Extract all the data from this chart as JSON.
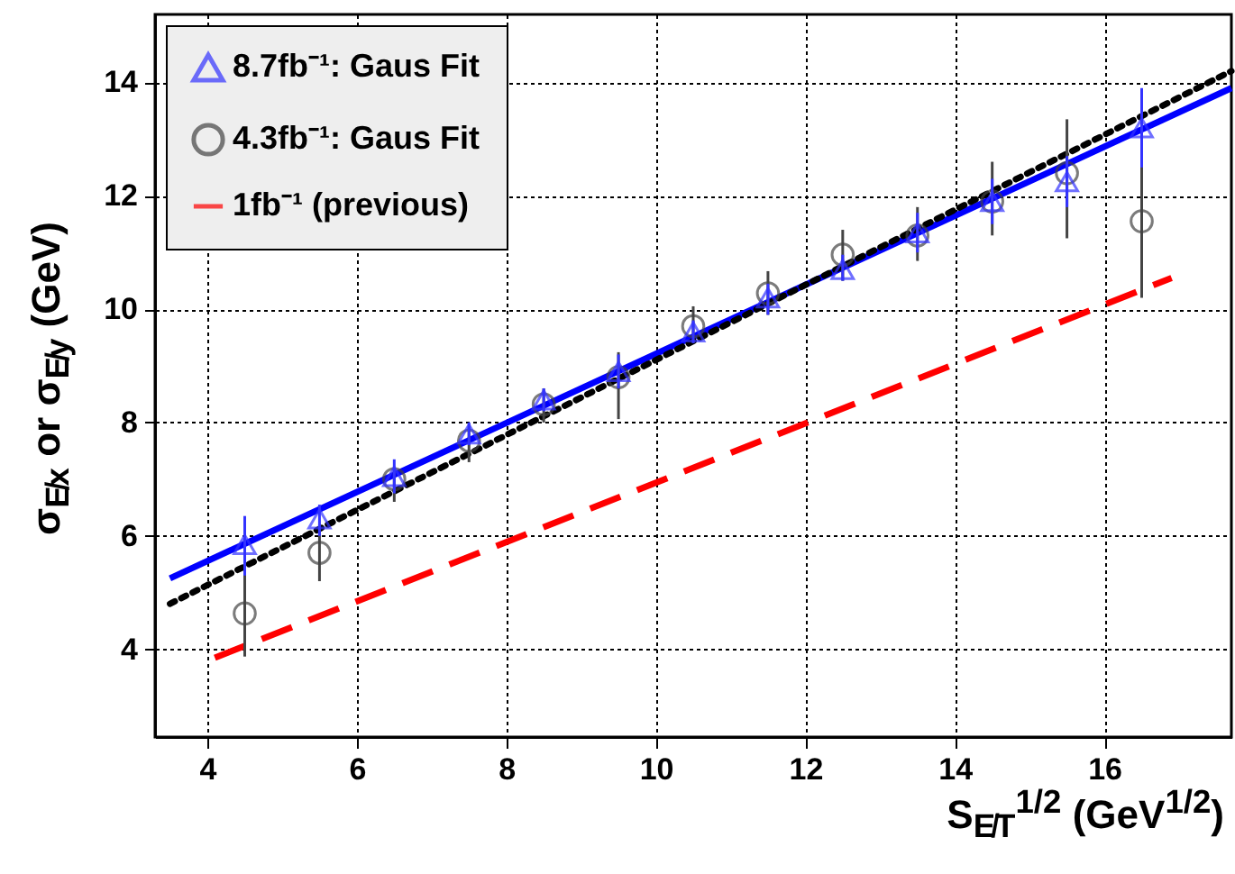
{
  "chart_data": {
    "type": "scatter",
    "xlabel": "S$_{E̸T}$$^{1/2}$ (GeV$^{1/2}$)",
    "ylabel": "σ$_{E̸x}$ or σ$_{E̸y}$ (GeV)",
    "xlim": [
      3.3,
      17.7
    ],
    "ylim": [
      2.45,
      15.2
    ],
    "xticks": [
      4,
      6,
      8,
      10,
      12,
      14,
      16
    ],
    "yticks": [
      4,
      6,
      8,
      10,
      12,
      14
    ],
    "grid": true,
    "legend": "top left",
    "series": [
      {
        "name": "8.7fb⁻¹: Gaus Fit",
        "marker": "triangle",
        "color": "#3333ff",
        "x": [
          4.5,
          5.5,
          6.5,
          7.5,
          8.5,
          9.5,
          10.5,
          11.5,
          12.5,
          13.5,
          14.5,
          15.5,
          16.5
        ],
        "values": [
          5.85,
          6.3,
          7.05,
          7.8,
          8.4,
          8.9,
          9.6,
          10.2,
          10.7,
          11.35,
          11.9,
          12.25,
          13.2
        ],
        "errors": [
          [
            5.3,
            6.35
          ],
          [
            6.0,
            6.55
          ],
          [
            6.75,
            7.35
          ],
          [
            7.6,
            8.0
          ],
          [
            8.2,
            8.6
          ],
          [
            8.6,
            9.2
          ],
          [
            9.4,
            9.8
          ],
          [
            9.9,
            10.45
          ],
          [
            10.5,
            10.96
          ],
          [
            11.0,
            11.7
          ],
          [
            11.5,
            12.3
          ],
          [
            11.8,
            12.7
          ],
          [
            12.5,
            13.9
          ]
        ]
      },
      {
        "type": "line",
        "color": "#0000ff",
        "line_style": "solid",
        "x": [
          3.5,
          17.7
        ],
        "values": [
          5.25,
          13.9
        ]
      },
      {
        "name": "4.3fb⁻¹: Gaus Fit",
        "marker": "circle",
        "color": "#444444",
        "x": [
          4.5,
          5.5,
          6.5,
          7.5,
          8.5,
          9.5,
          10.5,
          11.5,
          12.5,
          13.5,
          14.5,
          15.5,
          16.5
        ],
        "values": [
          4.63,
          5.7,
          7.0,
          7.68,
          8.32,
          8.8,
          9.7,
          10.28,
          10.96,
          11.3,
          11.9,
          12.4,
          11.55
        ],
        "errors": [
          [
            3.87,
            5.52
          ],
          [
            5.2,
            6.2
          ],
          [
            6.6,
            7.2
          ],
          [
            7.3,
            7.93
          ],
          [
            8.0,
            8.6
          ],
          [
            8.06,
            9.24
          ],
          [
            9.4,
            10.05
          ],
          [
            9.9,
            10.67
          ],
          [
            10.5,
            11.4
          ],
          [
            10.85,
            11.8
          ],
          [
            11.3,
            12.6
          ],
          [
            11.25,
            13.35
          ],
          [
            10.2,
            13.35
          ]
        ]
      },
      {
        "type": "line",
        "color": "#000000",
        "line_style": "dotted",
        "x": [
          3.5,
          17.7
        ],
        "values": [
          4.8,
          14.2
        ]
      },
      {
        "name": "1fb⁻¹  (previous)",
        "type": "line",
        "color": "#ff0000",
        "line_style": "dashed",
        "x": [
          4.1,
          16.9
        ],
        "values": [
          3.85,
          10.55
        ]
      }
    ]
  }
}
